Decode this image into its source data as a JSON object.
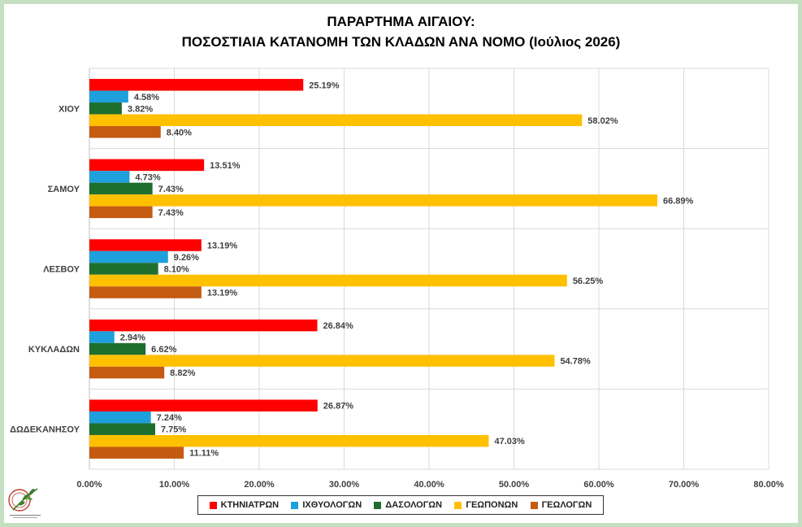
{
  "title": {
    "line1": "ΠΑΡΑΡΤΗΜΑ ΑΙΓΑΙΟΥ:",
    "line2": "ΠΟΣΟΣΤΙΑΙΑ ΚΑΤΑΝΟΜΗ ΤΩΝ ΚΛΑΔΩΝ ΑΝΑ ΝΟΜΟ (Ιούλιος 2026)"
  },
  "chart_data": {
    "type": "bar",
    "orientation": "horizontal",
    "title": "ΠΑΡΑΡΤΗΜΑ ΑΙΓΑΙΟΥ: ΠΟΣΟΣΤΙΑΙΑ ΚΑΤΑΝΟΜΗ ΤΩΝ ΚΛΑΔΩΝ ΑΝΑ ΝΟΜΟ (Ιούλιος 2026)",
    "categories": [
      "ΧΙΟΥ",
      "ΣΑΜΟΥ",
      "ΛΕΣΒΟΥ",
      "ΚΥΚΛΑΔΩΝ",
      "ΔΩΔΕΚΑΝΗΣΟΥ"
    ],
    "series": [
      {
        "name": "ΚΤΗΝΙΑΤΡΩΝ",
        "color": "#ff0000",
        "values": [
          25.19,
          13.51,
          13.19,
          26.84,
          26.87
        ],
        "labels": [
          "25.19%",
          "13.51%",
          "13.19%",
          "26.84%",
          "26.87%"
        ]
      },
      {
        "name": "ΙΧΘΥΟΛΟΓΩΝ",
        "color": "#1ea0dc",
        "values": [
          4.58,
          4.73,
          9.26,
          2.94,
          7.24
        ],
        "labels": [
          "4.58%",
          "4.73%",
          "9.26%",
          "2.94%",
          "7.24%"
        ]
      },
      {
        "name": "ΔΑΣΟΛΟΓΩΝ",
        "color": "#1e6e2e",
        "values": [
          3.82,
          7.43,
          8.1,
          6.62,
          7.75
        ],
        "labels": [
          "3.82%",
          "7.43%",
          "8.10%",
          "6.62%",
          "7.75%"
        ]
      },
      {
        "name": "ΓΕΩΠΟΝΩΝ",
        "color": "#ffc000",
        "values": [
          58.02,
          66.89,
          56.25,
          54.78,
          47.03
        ],
        "labels": [
          "58.02%",
          "66.89%",
          "56.25%",
          "54.78%",
          "47.03%"
        ]
      },
      {
        "name": "ΓΕΩΛΟΓΩΝ",
        "color": "#c55a11",
        "values": [
          8.4,
          7.43,
          13.19,
          8.82,
          11.11
        ],
        "labels": [
          "8.40%",
          "7.43%",
          "13.19%",
          "8.82%",
          "11.11%"
        ]
      }
    ],
    "xlim": [
      0,
      80
    ],
    "x_ticks": [
      0,
      10,
      20,
      30,
      40,
      50,
      60,
      70,
      80
    ],
    "x_tick_labels": [
      "0.00%",
      "10.00%",
      "20.00%",
      "30.00%",
      "40.00%",
      "50.00%",
      "60.00%",
      "70.00%",
      "80.00%"
    ],
    "grid": true,
    "legend_position": "bottom"
  },
  "logo": {
    "icon": "olive-branch-logo-icon",
    "colors": [
      "#c0392b",
      "#3a7d2c"
    ]
  },
  "colors": {
    "border": "#c5dfc2",
    "grid": "#d9d9d9",
    "axis": "#bfbfbf",
    "label_text": "#404040"
  }
}
